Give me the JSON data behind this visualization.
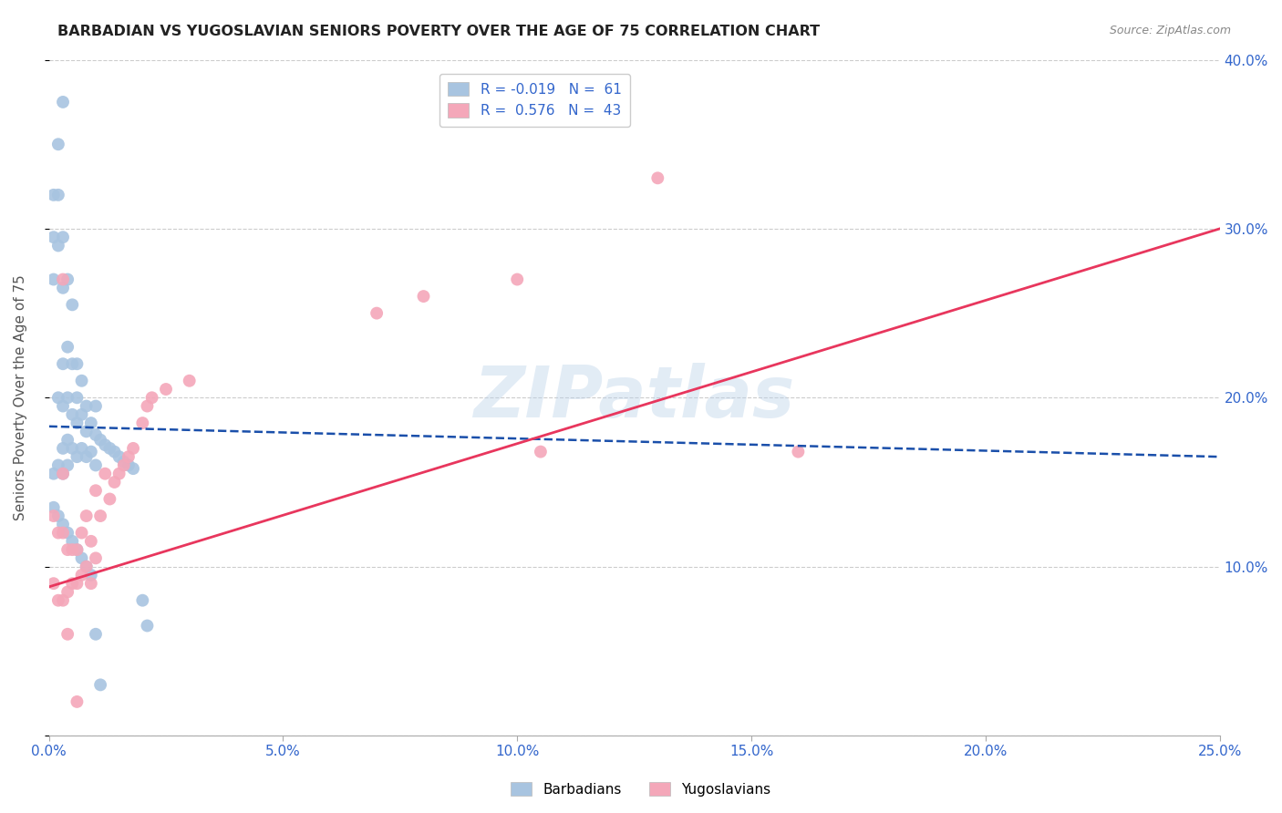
{
  "title": "BARBADIAN VS YUGOSLAVIAN SENIORS POVERTY OVER THE AGE OF 75 CORRELATION CHART",
  "source": "Source: ZipAtlas.com",
  "ylabel": "Seniors Poverty Over the Age of 75",
  "xlim": [
    0.0,
    0.25
  ],
  "ylim": [
    0.0,
    0.4
  ],
  "xticks": [
    0.0,
    0.05,
    0.1,
    0.15,
    0.2,
    0.25
  ],
  "yticks": [
    0.0,
    0.1,
    0.2,
    0.3,
    0.4
  ],
  "ytick_labels_right": [
    "",
    "10.0%",
    "20.0%",
    "30.0%",
    "40.0%"
  ],
  "barbadian_color": "#a8c4e0",
  "yugoslavian_color": "#f4a7b9",
  "barbadian_line_color": "#1a4faa",
  "yugoslavian_line_color": "#e8365d",
  "watermark": "ZIPatlas",
  "barb_line_x0": 0.0,
  "barb_line_y0": 0.183,
  "barb_line_x1": 0.25,
  "barb_line_y1": 0.165,
  "yugo_line_x0": 0.0,
  "yugo_line_y0": 0.088,
  "yugo_line_x1": 0.25,
  "yugo_line_y1": 0.3,
  "barbadian_x": [
    0.001,
    0.001,
    0.001,
    0.001,
    0.002,
    0.002,
    0.002,
    0.002,
    0.002,
    0.003,
    0.003,
    0.003,
    0.003,
    0.003,
    0.003,
    0.003,
    0.004,
    0.004,
    0.004,
    0.004,
    0.004,
    0.005,
    0.005,
    0.005,
    0.005,
    0.006,
    0.006,
    0.006,
    0.006,
    0.007,
    0.007,
    0.007,
    0.008,
    0.008,
    0.008,
    0.009,
    0.009,
    0.01,
    0.01,
    0.01,
    0.011,
    0.012,
    0.013,
    0.014,
    0.015,
    0.016,
    0.017,
    0.018,
    0.02,
    0.021,
    0.001,
    0.002,
    0.003,
    0.004,
    0.005,
    0.006,
    0.007,
    0.008,
    0.009,
    0.01,
    0.011
  ],
  "barbadian_y": [
    0.32,
    0.295,
    0.27,
    0.155,
    0.35,
    0.32,
    0.29,
    0.2,
    0.16,
    0.375,
    0.295,
    0.265,
    0.22,
    0.195,
    0.17,
    0.155,
    0.27,
    0.23,
    0.2,
    0.175,
    0.16,
    0.255,
    0.22,
    0.19,
    0.17,
    0.22,
    0.2,
    0.185,
    0.165,
    0.21,
    0.19,
    0.17,
    0.195,
    0.18,
    0.165,
    0.185,
    0.168,
    0.195,
    0.178,
    0.16,
    0.175,
    0.172,
    0.17,
    0.168,
    0.165,
    0.162,
    0.16,
    0.158,
    0.08,
    0.065,
    0.135,
    0.13,
    0.125,
    0.12,
    0.115,
    0.11,
    0.105,
    0.1,
    0.095,
    0.06,
    0.03
  ],
  "yugoslavian_x": [
    0.001,
    0.001,
    0.002,
    0.002,
    0.003,
    0.003,
    0.003,
    0.004,
    0.004,
    0.004,
    0.005,
    0.005,
    0.006,
    0.006,
    0.007,
    0.007,
    0.008,
    0.008,
    0.009,
    0.009,
    0.01,
    0.01,
    0.011,
    0.012,
    0.013,
    0.014,
    0.015,
    0.016,
    0.017,
    0.018,
    0.02,
    0.021,
    0.022,
    0.025,
    0.03,
    0.07,
    0.08,
    0.1,
    0.105,
    0.13,
    0.16,
    0.003,
    0.006
  ],
  "yugoslavian_y": [
    0.13,
    0.09,
    0.12,
    0.08,
    0.155,
    0.12,
    0.08,
    0.11,
    0.085,
    0.06,
    0.11,
    0.09,
    0.11,
    0.09,
    0.12,
    0.095,
    0.13,
    0.1,
    0.115,
    0.09,
    0.145,
    0.105,
    0.13,
    0.155,
    0.14,
    0.15,
    0.155,
    0.16,
    0.165,
    0.17,
    0.185,
    0.195,
    0.2,
    0.205,
    0.21,
    0.25,
    0.26,
    0.27,
    0.168,
    0.33,
    0.168,
    0.27,
    0.02
  ]
}
